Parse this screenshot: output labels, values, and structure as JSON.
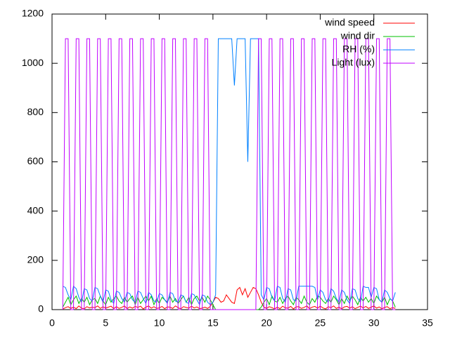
{
  "chart_data": {
    "type": "line",
    "x": [
      1,
      1.25,
      1.5,
      1.75,
      2,
      2.25,
      2.5,
      2.75,
      3,
      3.25,
      3.5,
      3.75,
      4,
      4.25,
      4.5,
      4.75,
      5,
      5.25,
      5.5,
      5.75,
      6,
      6.25,
      6.5,
      6.75,
      7,
      7.25,
      7.5,
      7.75,
      8,
      8.25,
      8.5,
      8.75,
      9,
      9.25,
      9.5,
      9.75,
      10,
      10.25,
      10.5,
      10.75,
      11,
      11.25,
      11.5,
      11.75,
      12,
      12.25,
      12.5,
      12.75,
      13,
      13.25,
      13.5,
      13.75,
      14,
      14.25,
      14.5,
      14.75,
      15,
      15.25,
      15.5,
      15.75,
      16,
      16.25,
      16.5,
      16.75,
      17,
      17.25,
      17.5,
      17.75,
      18,
      18.25,
      18.5,
      18.75,
      19,
      19.25,
      19.5,
      19.75,
      20,
      20.25,
      20.5,
      20.75,
      21,
      21.25,
      21.5,
      21.75,
      22,
      22.25,
      22.5,
      22.75,
      23,
      23.25,
      23.5,
      23.75,
      24,
      24.25,
      24.5,
      24.75,
      25,
      25.25,
      25.5,
      25.75,
      26,
      26.25,
      26.5,
      26.75,
      27,
      27.25,
      27.5,
      27.75,
      28,
      28.25,
      28.5,
      28.75,
      29,
      29.25,
      29.5,
      29.75,
      30,
      30.25,
      30.5,
      30.75,
      31,
      31.25,
      31.5,
      31.75,
      32
    ],
    "series": [
      {
        "name": "wind speed",
        "color": "#ff0000",
        "values": [
          2,
          8,
          12,
          5,
          10,
          4,
          15,
          6,
          3,
          12,
          7,
          10,
          8,
          15,
          5,
          12,
          6,
          10,
          14,
          4,
          12,
          5,
          9,
          15,
          4,
          11,
          6,
          13,
          9,
          14,
          3,
          10,
          15,
          6,
          12,
          5,
          7,
          13,
          4,
          11,
          10,
          5,
          15,
          8,
          3,
          12,
          9,
          6,
          14,
          7,
          11,
          4,
          6,
          10,
          5,
          13,
          30,
          50,
          45,
          30,
          35,
          60,
          45,
          30,
          25,
          80,
          90,
          60,
          85,
          50,
          70,
          90,
          85,
          60,
          30,
          10,
          5,
          12,
          8,
          3,
          10,
          4,
          14,
          7,
          6,
          13,
          3,
          11,
          12,
          5,
          9,
          15,
          4,
          10,
          13,
          6,
          14,
          7,
          3,
          12,
          8,
          15,
          5,
          10,
          3,
          11,
          13,
          6,
          12,
          4,
          9,
          14,
          7,
          13,
          5,
          10,
          15,
          6,
          11,
          3,
          9,
          12,
          4,
          8,
          5
        ]
      },
      {
        "name": "wind dir",
        "color": "#00c000",
        "values": [
          10,
          30,
          50,
          20,
          40,
          55,
          25,
          45,
          30,
          50,
          20,
          40,
          45,
          25,
          55,
          35,
          20,
          50,
          30,
          45,
          55,
          35,
          25,
          50,
          30,
          45,
          55,
          20,
          50,
          25,
          40,
          55,
          35,
          55,
          20,
          45,
          25,
          50,
          40,
          30,
          55,
          30,
          45,
          25,
          40,
          55,
          30,
          50,
          20,
          45,
          55,
          35,
          50,
          30,
          55,
          40,
          20,
          0,
          0,
          0,
          0,
          0,
          0,
          0,
          0,
          0,
          0,
          0,
          0,
          0,
          0,
          0,
          0,
          0,
          10,
          30,
          45,
          20,
          55,
          35,
          30,
          50,
          25,
          45,
          55,
          35,
          20,
          50,
          40,
          25,
          55,
          30,
          20,
          45,
          30,
          55,
          50,
          35,
          25,
          45,
          30,
          55,
          40,
          20,
          45,
          25,
          55,
          35,
          55,
          40,
          20,
          50,
          35,
          50,
          30,
          45,
          25,
          55,
          40,
          30,
          50,
          20,
          45,
          35,
          10
        ]
      },
      {
        "name": "RH (%)",
        "color": "#0080ff",
        "values": [
          95,
          90,
          60,
          40,
          95,
          85,
          50,
          30,
          85,
          80,
          45,
          35,
          90,
          85,
          55,
          30,
          80,
          75,
          40,
          25,
          75,
          70,
          45,
          30,
          70,
          65,
          40,
          30,
          75,
          70,
          45,
          25,
          70,
          60,
          35,
          30,
          65,
          60,
          40,
          25,
          70,
          65,
          35,
          30,
          60,
          55,
          30,
          25,
          65,
          60,
          40,
          20,
          60,
          55,
          30,
          20,
          30,
          60,
          1100,
          1100,
          1100,
          1100,
          1100,
          1100,
          910,
          1100,
          1100,
          1100,
          1100,
          600,
          1100,
          1100,
          1100,
          1100,
          60,
          40,
          90,
          85,
          50,
          35,
          95,
          90,
          45,
          30,
          85,
          80,
          40,
          35,
          95,
          95,
          95,
          95,
          95,
          95,
          90,
          40,
          80,
          70,
          40,
          30,
          85,
          75,
          45,
          30,
          80,
          70,
          40,
          25,
          85,
          80,
          45,
          30,
          95,
          90,
          90,
          50,
          90,
          85,
          40,
          30,
          80,
          70,
          45,
          35,
          70
        ]
      },
      {
        "name": "Light (lux)",
        "color": "#c000ff",
        "values": [
          0,
          1100,
          1100,
          0,
          0,
          1100,
          1100,
          0,
          0,
          1100,
          1100,
          0,
          0,
          1100,
          1100,
          0,
          0,
          1100,
          1100,
          0,
          0,
          1100,
          1100,
          0,
          0,
          1100,
          1100,
          0,
          0,
          1100,
          1100,
          0,
          0,
          1100,
          1100,
          0,
          0,
          1100,
          1100,
          0,
          0,
          1100,
          1100,
          0,
          0,
          1100,
          1100,
          0,
          0,
          1100,
          1100,
          0,
          0,
          1100,
          1100,
          0,
          0,
          0,
          0,
          0,
          0,
          0,
          0,
          0,
          0,
          0,
          0,
          0,
          0,
          0,
          0,
          0,
          0,
          1100,
          1100,
          0,
          0,
          1100,
          1100,
          0,
          0,
          1100,
          1100,
          0,
          0,
          1100,
          1100,
          0,
          0,
          1100,
          1100,
          0,
          0,
          1100,
          1100,
          0,
          0,
          1100,
          1100,
          0,
          0,
          1100,
          1100,
          0,
          0,
          1100,
          1100,
          0,
          0,
          1100,
          1100,
          0,
          0,
          1100,
          1100,
          0,
          0,
          1100,
          1100,
          0,
          0,
          1100,
          1100,
          0,
          0
        ]
      }
    ],
    "xlim": [
      0,
      35
    ],
    "xticks": [
      0,
      5,
      10,
      15,
      20,
      25,
      30,
      35
    ],
    "ylim": [
      0,
      1200
    ],
    "yticks": [
      0,
      200,
      400,
      600,
      800,
      1000,
      1200
    ],
    "grid": false,
    "legend": "top-right"
  }
}
